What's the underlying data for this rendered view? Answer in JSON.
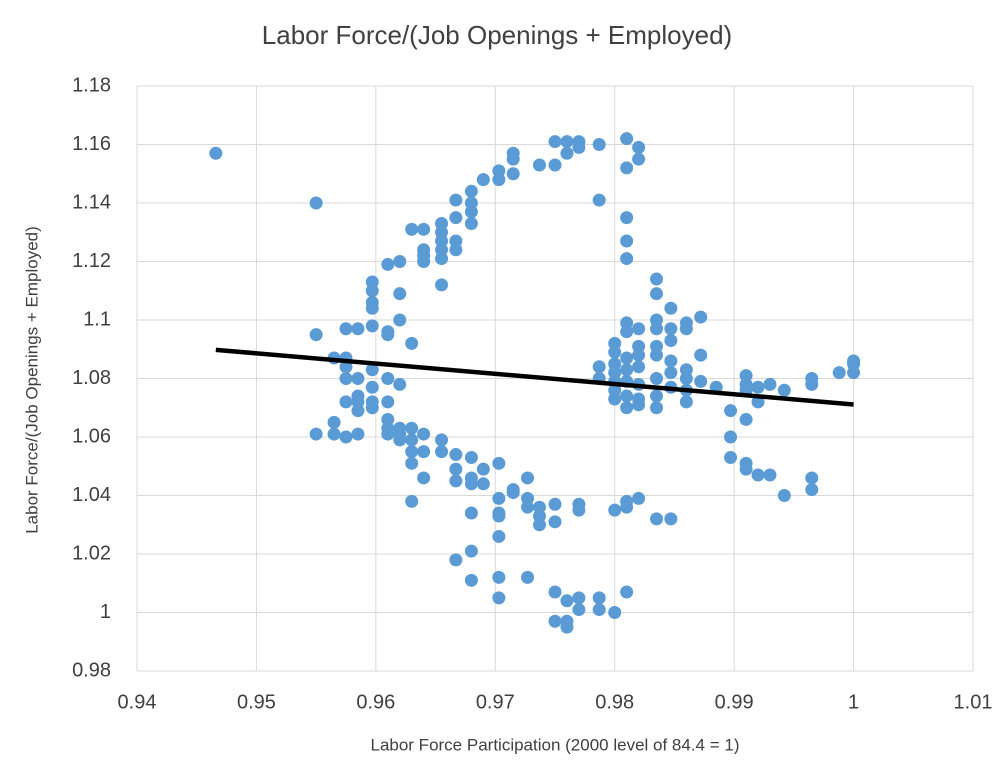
{
  "chart_data": {
    "type": "scatter",
    "title": "Labor Force/(Job Openings + Employed)",
    "x_label": "Labor Force Participation (2000 level of 84.4 = 1)",
    "y_label": "Labor Force/(Job Openings + Employed)",
    "color": "#5b9bd5",
    "grid": true,
    "xlim": [
      0.94,
      1.01
    ],
    "xticks": [
      0.94,
      0.95,
      0.96,
      0.97,
      0.98,
      0.99,
      1,
      1.01
    ],
    "ylim": [
      0.98,
      1.18
    ],
    "yticks": [
      0.98,
      1,
      1.02,
      1.04,
      1.06,
      1.08,
      1.1,
      1.12,
      1.14,
      1.16,
      1.18
    ],
    "x": [
      0.9466,
      0.955,
      0.955,
      0.955,
      0.9565,
      0.9565,
      0.9565,
      0.9575,
      0.9575,
      0.9575,
      0.9575,
      0.9575,
      0.9575,
      0.9585,
      0.9585,
      0.9585,
      0.9585,
      0.9585,
      0.9585,
      0.9597,
      0.9597,
      0.9597,
      0.9597,
      0.9597,
      0.9597,
      0.9597,
      0.9597,
      0.9597,
      0.961,
      0.961,
      0.961,
      0.961,
      0.961,
      0.961,
      0.961,
      0.961,
      0.962,
      0.962,
      0.962,
      0.962,
      0.962,
      0.962,
      0.962,
      0.963,
      0.963,
      0.963,
      0.963,
      0.963,
      0.963,
      0.963,
      0.964,
      0.964,
      0.964,
      0.964,
      0.964,
      0.964,
      0.964,
      0.9655,
      0.9655,
      0.9655,
      0.9655,
      0.9655,
      0.9655,
      0.9655,
      0.9655,
      0.9667,
      0.9667,
      0.9667,
      0.9667,
      0.9667,
      0.9667,
      0.9667,
      0.9667,
      0.968,
      0.968,
      0.968,
      0.968,
      0.968,
      0.968,
      0.968,
      0.968,
      0.968,
      0.968,
      0.969,
      0.969,
      0.969,
      0.9703,
      0.9703,
      0.9703,
      0.9703,
      0.9703,
      0.9703,
      0.9703,
      0.9703,
      0.9703,
      0.9715,
      0.9715,
      0.9715,
      0.9715,
      0.9715,
      0.9727,
      0.9727,
      0.9727,
      0.9727,
      0.9737,
      0.9737,
      0.9737,
      0.9737,
      0.975,
      0.975,
      0.975,
      0.975,
      0.975,
      0.975,
      0.976,
      0.976,
      0.976,
      0.976,
      0.976,
      0.977,
      0.977,
      0.977,
      0.977,
      0.977,
      0.977,
      0.9787,
      0.9787,
      0.9787,
      0.9787,
      0.9787,
      0.9787,
      0.98,
      0.98,
      0.98,
      0.98,
      0.98,
      0.98,
      0.98,
      0.98,
      0.98,
      0.981,
      0.981,
      0.981,
      0.981,
      0.981,
      0.981,
      0.981,
      0.981,
      0.981,
      0.981,
      0.981,
      0.981,
      0.981,
      0.981,
      0.981,
      0.982,
      0.982,
      0.982,
      0.982,
      0.982,
      0.982,
      0.982,
      0.982,
      0.982,
      0.982,
      0.9835,
      0.9835,
      0.9835,
      0.9835,
      0.9835,
      0.9835,
      0.9835,
      0.9835,
      0.9835,
      0.9835,
      0.9847,
      0.9847,
      0.9847,
      0.9847,
      0.9847,
      0.9847,
      0.9847,
      0.986,
      0.986,
      0.986,
      0.986,
      0.986,
      0.986,
      0.9872,
      0.9872,
      0.9872,
      0.9885,
      0.9897,
      0.9897,
      0.9897,
      0.991,
      0.991,
      0.991,
      0.991,
      0.991,
      0.991,
      0.992,
      0.992,
      0.992,
      0.993,
      0.993,
      0.9942,
      0.9942,
      0.9965,
      0.9965,
      0.9965,
      0.9965,
      0.9988,
      1.0,
      1.0,
      1.0
    ],
    "values": [
      1.157,
      1.14,
      1.095,
      1.061,
      1.087,
      1.065,
      1.061,
      1.097,
      1.087,
      1.084,
      1.08,
      1.072,
      1.06,
      1.097,
      1.08,
      1.074,
      1.072,
      1.069,
      1.061,
      1.113,
      1.11,
      1.106,
      1.104,
      1.098,
      1.083,
      1.077,
      1.072,
      1.07,
      1.119,
      1.096,
      1.095,
      1.08,
      1.072,
      1.066,
      1.063,
      1.061,
      1.12,
      1.109,
      1.1,
      1.078,
      1.063,
      1.061,
      1.059,
      1.131,
      1.092,
      1.063,
      1.059,
      1.055,
      1.051,
      1.038,
      1.131,
      1.124,
      1.122,
      1.12,
      1.061,
      1.055,
      1.046,
      1.133,
      1.13,
      1.127,
      1.124,
      1.121,
      1.112,
      1.059,
      1.055,
      1.141,
      1.135,
      1.127,
      1.124,
      1.054,
      1.049,
      1.045,
      1.018,
      1.144,
      1.14,
      1.137,
      1.133,
      1.053,
      1.046,
      1.044,
      1.034,
      1.021,
      1.011,
      1.148,
      1.049,
      1.044,
      1.151,
      1.148,
      1.051,
      1.039,
      1.034,
      1.033,
      1.026,
      1.012,
      1.005,
      1.157,
      1.155,
      1.15,
      1.042,
      1.041,
      1.046,
      1.039,
      1.036,
      1.012,
      1.153,
      1.036,
      1.033,
      1.03,
      1.161,
      1.153,
      1.037,
      1.031,
      1.007,
      0.997,
      1.161,
      1.157,
      1.004,
      0.997,
      0.995,
      1.161,
      1.159,
      1.037,
      1.035,
      1.005,
      1.001,
      1.16,
      1.141,
      1.084,
      1.08,
      1.001,
      1.005,
      1.092,
      1.089,
      1.085,
      1.082,
      1.079,
      1.076,
      1.073,
      1.035,
      1.0,
      1.162,
      1.152,
      1.135,
      1.127,
      1.121,
      1.099,
      1.096,
      1.087,
      1.083,
      1.079,
      1.074,
      1.07,
      1.038,
      1.036,
      1.007,
      1.159,
      1.155,
      1.097,
      1.091,
      1.088,
      1.084,
      1.078,
      1.073,
      1.071,
      1.039,
      1.114,
      1.109,
      1.1,
      1.097,
      1.091,
      1.088,
      1.08,
      1.074,
      1.07,
      1.032,
      1.104,
      1.097,
      1.093,
      1.086,
      1.082,
      1.077,
      1.032,
      1.099,
      1.097,
      1.083,
      1.08,
      1.076,
      1.072,
      1.101,
      1.088,
      1.079,
      1.077,
      1.069,
      1.06,
      1.053,
      1.081,
      1.078,
      1.076,
      1.066,
      1.051,
      1.049,
      1.077,
      1.072,
      1.047,
      1.078,
      1.047,
      1.076,
      1.04,
      1.08,
      1.078,
      1.046,
      1.042,
      1.082,
      1.086,
      1.085,
      1.082
    ],
    "trendline": {
      "color": "#000000",
      "x": [
        0.9466,
        1.0
      ],
      "y": [
        1.0898,
        1.0711
      ]
    }
  }
}
